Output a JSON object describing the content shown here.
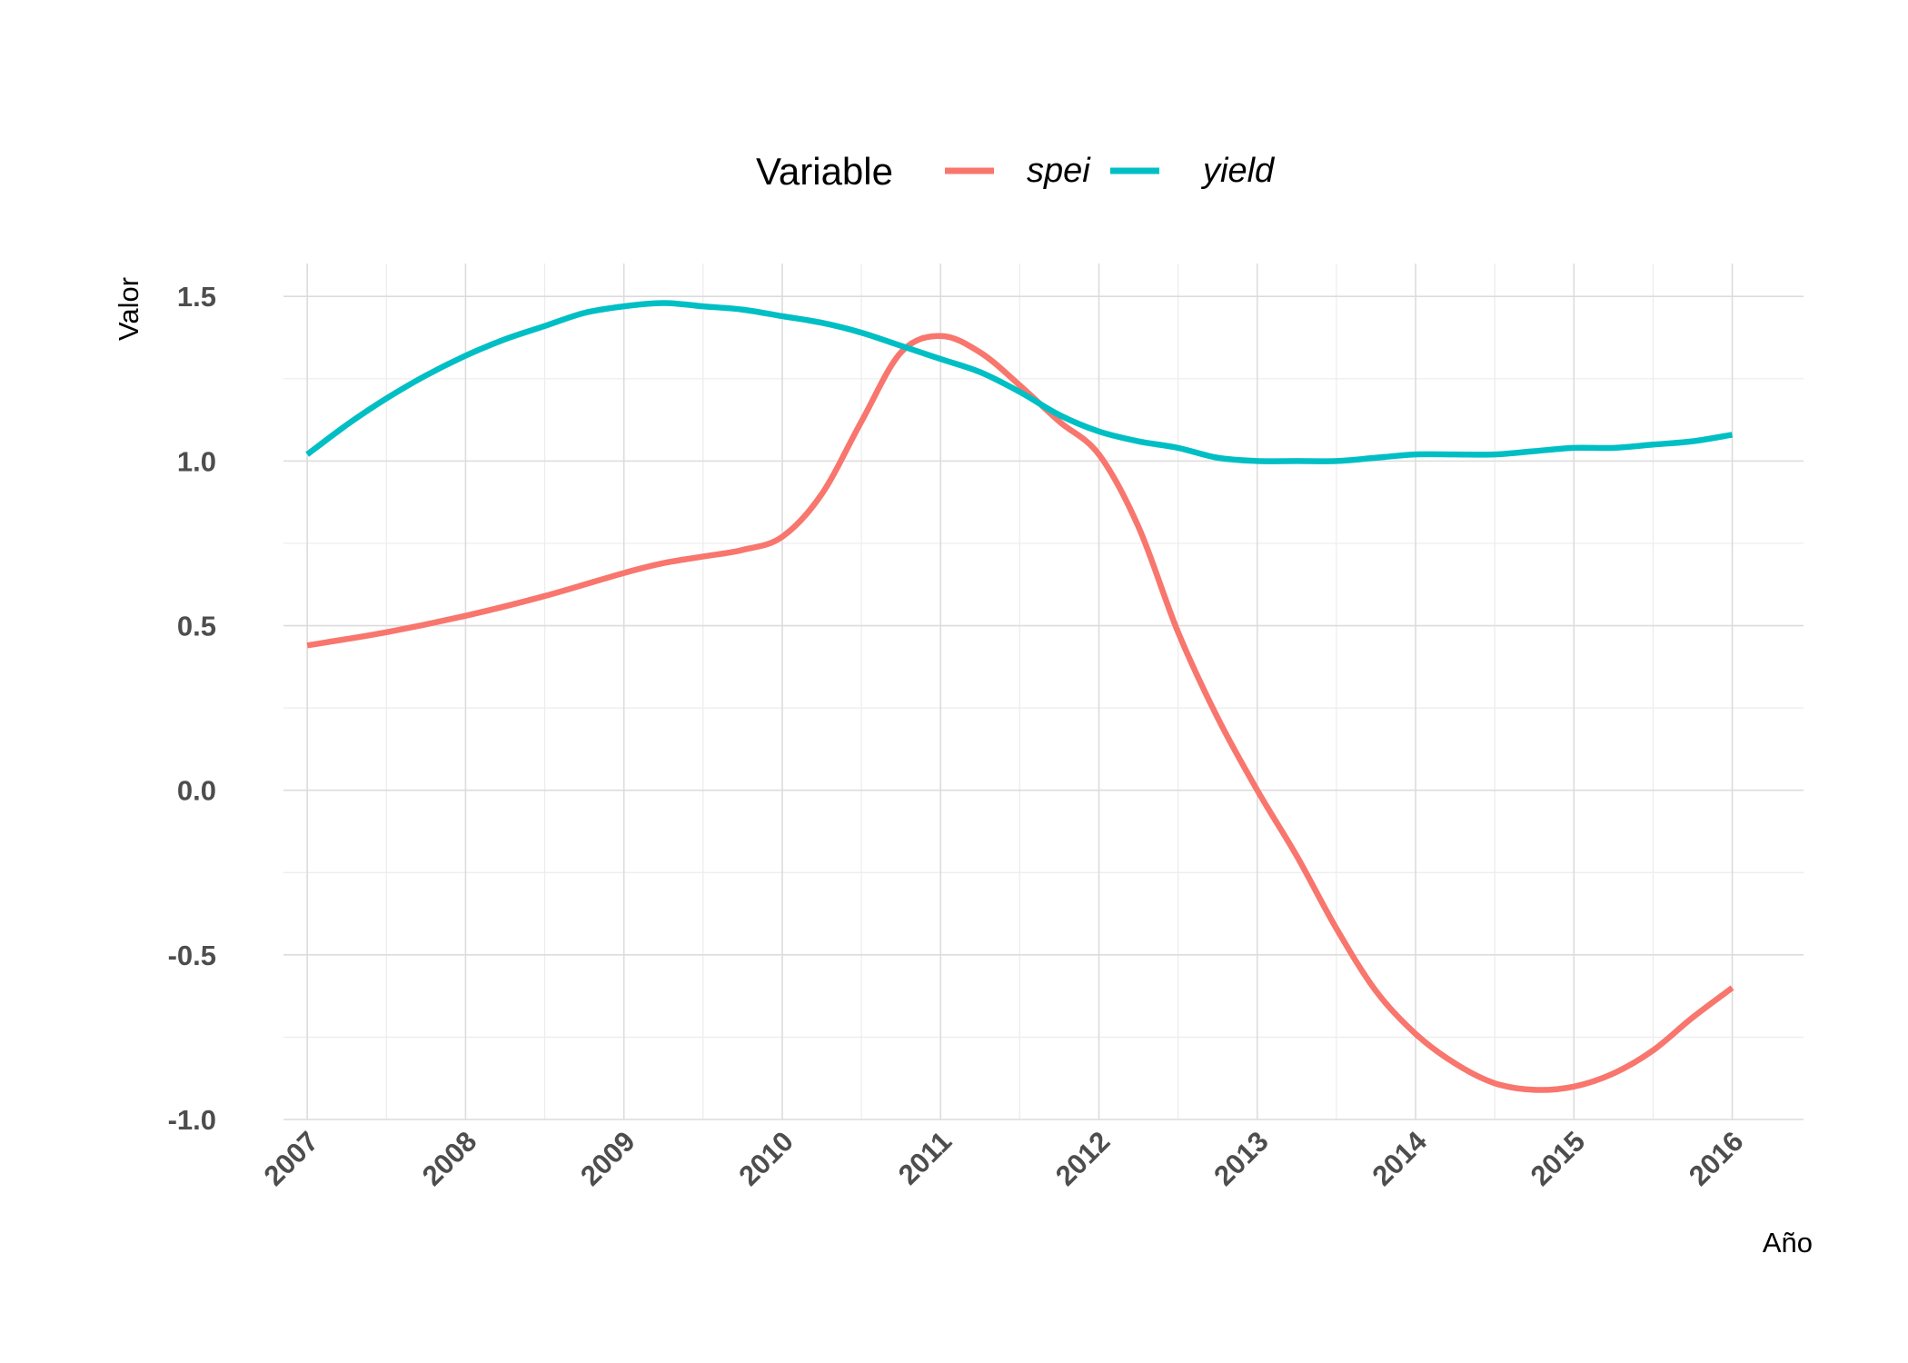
{
  "chart_data": {
    "type": "line",
    "xlabel": "Año",
    "ylabel": "Valor",
    "xlim": [
      2006.85,
      2016.45
    ],
    "ylim": [
      -1.0,
      1.6
    ],
    "x_ticks": [
      2007,
      2008,
      2009,
      2010,
      2011,
      2012,
      2013,
      2014,
      2015,
      2016
    ],
    "y_ticks": [
      -1.0,
      -0.5,
      0.0,
      0.5,
      1.0,
      1.5
    ],
    "y_tick_labels": [
      "-1.0",
      "-0.5",
      "0.0",
      "0.5",
      "1.0",
      "1.5"
    ],
    "grid": true,
    "legend": {
      "title": "Variable",
      "position": "top"
    },
    "series": [
      {
        "name": "spei",
        "color": "#F8766D",
        "x": [
          2007,
          2007.5,
          2008,
          2008.5,
          2009,
          2009.25,
          2009.5,
          2009.75,
          2010,
          2010.25,
          2010.5,
          2010.75,
          2011,
          2011.25,
          2011.5,
          2011.75,
          2012,
          2012.25,
          2012.5,
          2012.75,
          2013,
          2013.25,
          2013.5,
          2013.75,
          2014,
          2014.25,
          2014.5,
          2014.75,
          2015,
          2015.25,
          2015.5,
          2015.75,
          2016
        ],
        "y": [
          0.44,
          0.48,
          0.53,
          0.59,
          0.66,
          0.69,
          0.71,
          0.73,
          0.77,
          0.9,
          1.12,
          1.33,
          1.38,
          1.33,
          1.23,
          1.12,
          1.02,
          0.8,
          0.48,
          0.22,
          0.0,
          -0.2,
          -0.42,
          -0.61,
          -0.74,
          -0.83,
          -0.89,
          -0.91,
          -0.9,
          -0.86,
          -0.79,
          -0.69,
          -0.6
        ]
      },
      {
        "name": "yield",
        "color": "#00BFC4",
        "x": [
          2007,
          2007.25,
          2007.5,
          2007.75,
          2008,
          2008.25,
          2008.5,
          2008.75,
          2009,
          2009.25,
          2009.5,
          2009.75,
          2010,
          2010.25,
          2010.5,
          2010.75,
          2011,
          2011.25,
          2011.5,
          2011.75,
          2012,
          2012.25,
          2012.5,
          2012.75,
          2013,
          2013.25,
          2013.5,
          2013.75,
          2014,
          2014.25,
          2014.5,
          2014.75,
          2015,
          2015.25,
          2015.5,
          2015.75,
          2016
        ],
        "y": [
          1.02,
          1.11,
          1.19,
          1.26,
          1.32,
          1.37,
          1.41,
          1.45,
          1.47,
          1.48,
          1.47,
          1.46,
          1.44,
          1.42,
          1.39,
          1.35,
          1.31,
          1.27,
          1.21,
          1.14,
          1.09,
          1.06,
          1.04,
          1.01,
          1.0,
          1.0,
          1.0,
          1.01,
          1.02,
          1.02,
          1.02,
          1.03,
          1.04,
          1.04,
          1.05,
          1.06,
          1.08
        ]
      }
    ]
  }
}
